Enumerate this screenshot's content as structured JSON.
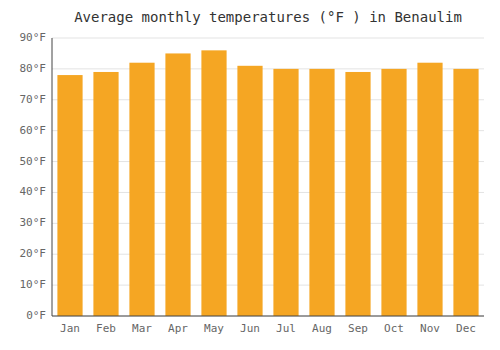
{
  "chart_data": {
    "type": "bar",
    "title": "Average monthly temperatures (°F ) in Benaulim",
    "categories": [
      "Jan",
      "Feb",
      "Mar",
      "Apr",
      "May",
      "Jun",
      "Jul",
      "Aug",
      "Sep",
      "Oct",
      "Nov",
      "Dec"
    ],
    "values": [
      78,
      79,
      82,
      85,
      86,
      81,
      80,
      80,
      79,
      80,
      82,
      80
    ],
    "color": "#F5A623",
    "ylim": [
      0,
      90
    ],
    "yticks": [
      {
        "value": 0,
        "label": "0°F"
      },
      {
        "value": 10,
        "label": "10°F"
      },
      {
        "value": 20,
        "label": "20°F"
      },
      {
        "value": 30,
        "label": "30°F"
      },
      {
        "value": 40,
        "label": "40°F"
      },
      {
        "value": 50,
        "label": "50°F"
      },
      {
        "value": 60,
        "label": "60°F"
      },
      {
        "value": 70,
        "label": "70°F"
      },
      {
        "value": 80,
        "label": "80°F"
      },
      {
        "value": 90,
        "label": "90°F"
      }
    ],
    "grid": true
  }
}
